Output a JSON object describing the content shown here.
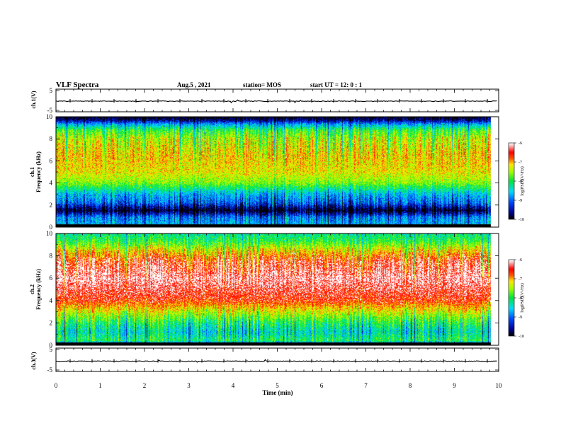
{
  "header": {
    "title": "VLF Spectra",
    "date": "Aug.5  , 2021",
    "station": "station= MOS",
    "start": "start  UT =   12: 0  : 1"
  },
  "chart_data": [
    {
      "type": "line",
      "panel": "ch1-waveform",
      "ylabel": "ch.1(V)",
      "ylim": [
        -5,
        5
      ],
      "yticks": [
        "5",
        "-5"
      ],
      "xlim": [
        0,
        10
      ],
      "baseline": 0
    },
    {
      "type": "heatmap",
      "panel": "ch1-spectrogram",
      "ylabel_line1": "ch.1",
      "ylabel_line2": "Frequency (kHz)",
      "ylim": [
        0,
        10
      ],
      "yticks": [
        "0",
        "2",
        "4",
        "6",
        "8",
        "10"
      ],
      "xlim": [
        0,
        10
      ],
      "data_end_min": 9.82,
      "colorbar": {
        "label": "log(PSD)(V²/Hz)",
        "ticks": [
          "-6",
          "-7",
          "-8",
          "-9",
          "-10"
        ],
        "range": [
          -10,
          -6
        ]
      },
      "profile": [
        {
          "f": 0.0,
          "v": -10
        },
        {
          "f": 0.3,
          "v": -8.7
        },
        {
          "f": 0.9,
          "v": -8.9
        },
        {
          "f": 1.5,
          "v": -10
        },
        {
          "f": 2.2,
          "v": -9.0
        },
        {
          "f": 3.0,
          "v": -8.6
        },
        {
          "f": 4.0,
          "v": -7.6
        },
        {
          "f": 5.0,
          "v": -7.2
        },
        {
          "f": 6.5,
          "v": -7.1
        },
        {
          "f": 8.0,
          "v": -7.4
        },
        {
          "f": 8.8,
          "v": -7.9
        },
        {
          "f": 9.3,
          "v": -8.7
        },
        {
          "f": 9.7,
          "v": -9.7
        },
        {
          "f": 10.0,
          "v": -10
        }
      ]
    },
    {
      "type": "heatmap",
      "panel": "ch2-spectrogram",
      "ylabel_line1": "ch.2",
      "ylabel_line2": "Frequency (kHz)",
      "ylim": [
        0,
        10
      ],
      "yticks": [
        "0",
        "2",
        "4",
        "6",
        "8",
        "10"
      ],
      "xlim": [
        0,
        10
      ],
      "data_end_min": 9.82,
      "colorbar": {
        "label": "log(PSD)(V²/Hz)",
        "ticks": [
          "-6",
          "-7",
          "-8",
          "-9",
          "-10"
        ],
        "range": [
          -10,
          -6
        ]
      },
      "profile": [
        {
          "f": 0.0,
          "v": -10
        },
        {
          "f": 0.4,
          "v": -8.0
        },
        {
          "f": 1.2,
          "v": -8.4
        },
        {
          "f": 2.0,
          "v": -8.0
        },
        {
          "f": 3.0,
          "v": -7.3
        },
        {
          "f": 4.0,
          "v": -6.6
        },
        {
          "f": 6.0,
          "v": -6.2
        },
        {
          "f": 7.5,
          "v": -6.5
        },
        {
          "f": 8.5,
          "v": -7.2
        },
        {
          "f": 9.3,
          "v": -7.9
        },
        {
          "f": 10.0,
          "v": -8.2
        }
      ]
    },
    {
      "type": "line",
      "panel": "ch3-waveform",
      "ylabel": "ch.3(V)",
      "ylim": [
        -5,
        5
      ],
      "yticks": [
        "5",
        "-5"
      ],
      "xlim": [
        0,
        10
      ],
      "baseline": 0
    }
  ],
  "xaxis": {
    "label": "Time  (min)",
    "ticks": [
      "0",
      "1",
      "2",
      "3",
      "4",
      "5",
      "6",
      "7",
      "8",
      "9",
      "10"
    ]
  }
}
